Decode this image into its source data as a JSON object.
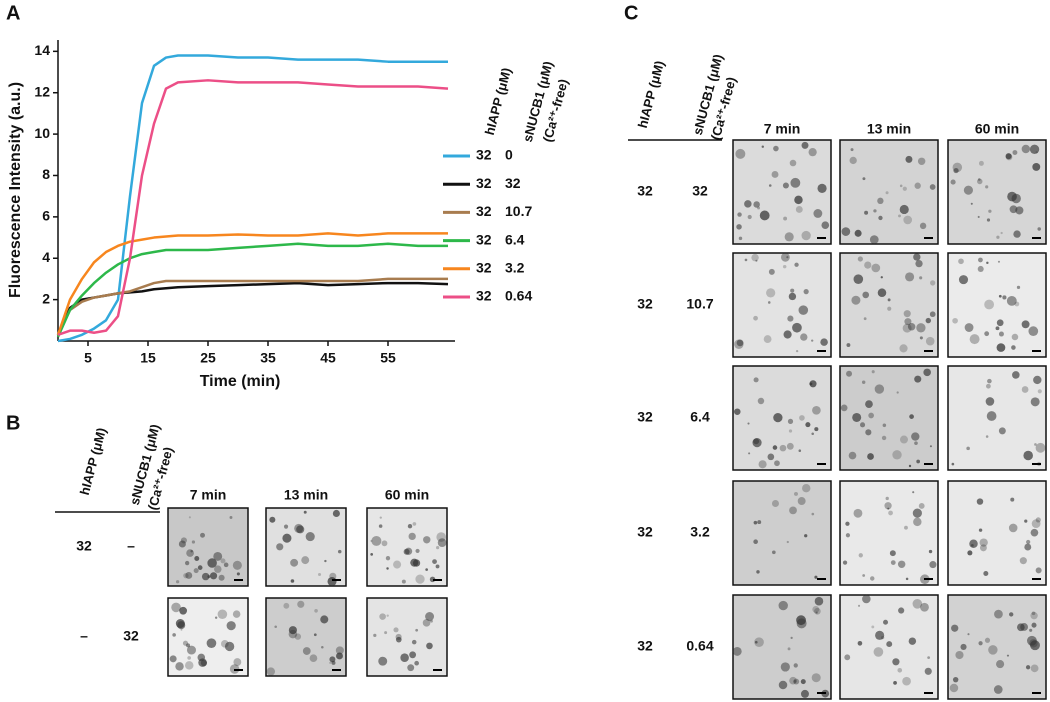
{
  "chart_data": {
    "type": "line",
    "panel_label": "A",
    "xlabel": "Time (min)",
    "ylabel": "Fluorescence Intensity (a.u.)",
    "x": [
      0,
      2,
      4,
      6,
      8,
      10,
      12,
      14,
      16,
      18,
      20,
      25,
      30,
      35,
      40,
      45,
      50,
      55,
      60,
      65
    ],
    "xlim": [
      0,
      66
    ],
    "xticks": [
      5,
      15,
      25,
      35,
      45,
      55
    ],
    "ylim": [
      0,
      14.5
    ],
    "yticks": [
      2,
      4,
      6,
      8,
      10,
      12,
      14
    ],
    "series": [
      {
        "name": "0",
        "color": "#33a9dc",
        "values": [
          0,
          0.1,
          0.3,
          0.6,
          1.0,
          2.0,
          7.0,
          11.5,
          13.3,
          13.7,
          13.8,
          13.8,
          13.7,
          13.7,
          13.6,
          13.6,
          13.6,
          13.5,
          13.5,
          13.5
        ]
      },
      {
        "name": "32",
        "color": "#111111",
        "values": [
          0.3,
          1.6,
          2.0,
          2.1,
          2.2,
          2.3,
          2.35,
          2.4,
          2.5,
          2.55,
          2.6,
          2.65,
          2.7,
          2.75,
          2.8,
          2.7,
          2.75,
          2.8,
          2.8,
          2.75
        ]
      },
      {
        "name": "10.7",
        "color": "#a87c4f",
        "values": [
          0.3,
          1.5,
          1.9,
          2.1,
          2.2,
          2.3,
          2.4,
          2.6,
          2.8,
          2.9,
          2.9,
          2.9,
          2.9,
          2.9,
          2.9,
          2.9,
          2.9,
          3.0,
          3.0,
          3.0
        ]
      },
      {
        "name": "6.4",
        "color": "#2db84a",
        "values": [
          0.2,
          1.5,
          2.2,
          2.8,
          3.3,
          3.7,
          4.0,
          4.2,
          4.3,
          4.4,
          4.4,
          4.4,
          4.5,
          4.6,
          4.7,
          4.6,
          4.6,
          4.7,
          4.6,
          4.6
        ]
      },
      {
        "name": "3.2",
        "color": "#f7861e",
        "values": [
          0.3,
          2.0,
          3.0,
          3.8,
          4.3,
          4.6,
          4.8,
          4.9,
          5.0,
          5.05,
          5.1,
          5.1,
          5.15,
          5.1,
          5.1,
          5.2,
          5.1,
          5.2,
          5.2,
          5.2
        ]
      },
      {
        "name": "0.64",
        "color": "#ec4f87",
        "values": [
          0.3,
          0.5,
          0.5,
          0.4,
          0.5,
          1.2,
          4.0,
          8.0,
          10.5,
          12.2,
          12.5,
          12.6,
          12.5,
          12.5,
          12.5,
          12.4,
          12.3,
          12.3,
          12.3,
          12.2
        ]
      }
    ],
    "legend": {
      "headers": [
        "hIAPP (μM)",
        "sNUCB1 (μM)",
        "(Ca²⁺-free)"
      ],
      "hiapp": [
        "32",
        "32",
        "32",
        "32",
        "32",
        "32"
      ]
    }
  },
  "panel_b": {
    "label": "B",
    "headers": [
      "hIAPP (μM)",
      "sNUCB1 (μM)",
      "(Ca²⁺-free)"
    ],
    "columns": [
      "7 min",
      "13 min",
      "60 min"
    ],
    "rows": [
      [
        "32",
        "–"
      ],
      [
        "–",
        "32"
      ]
    ]
  },
  "panel_c": {
    "label": "C",
    "headers": [
      "hIAPP (μM)",
      "sNUCB1 (μM)",
      "(Ca²⁺-free)"
    ],
    "columns": [
      "7 min",
      "13 min",
      "60 min"
    ],
    "rows": [
      [
        "32",
        "32"
      ],
      [
        "32",
        "10.7"
      ],
      [
        "32",
        "6.4"
      ],
      [
        "32",
        "3.2"
      ],
      [
        "32",
        "0.64"
      ]
    ]
  }
}
